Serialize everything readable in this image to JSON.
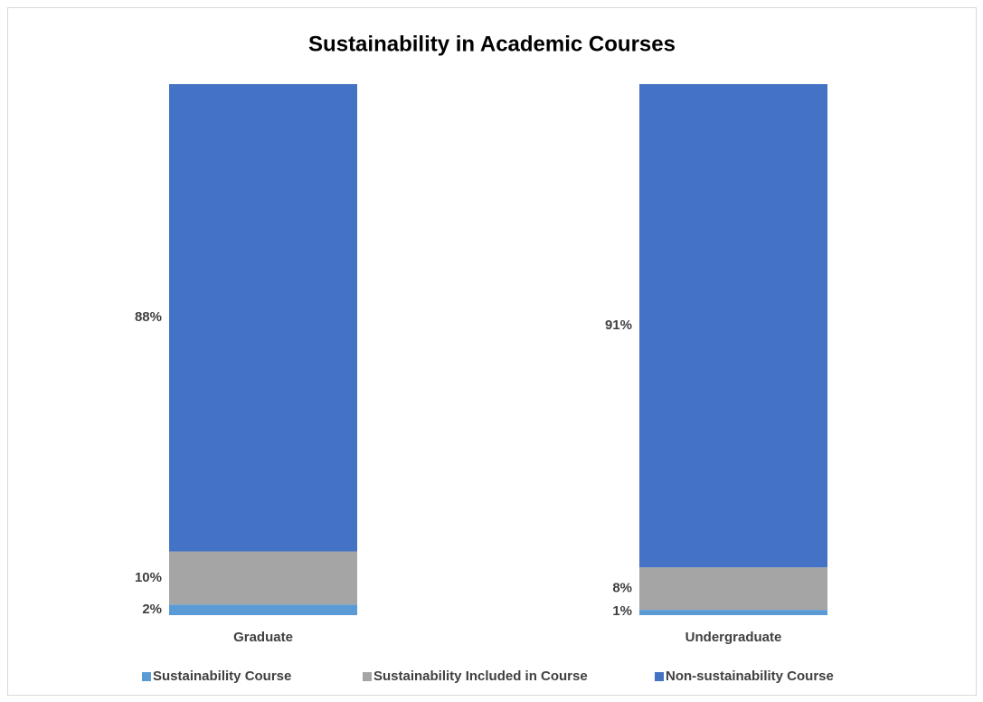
{
  "chart_data": {
    "type": "stacked_bar",
    "title": "Sustainability in Academic Courses",
    "categories": [
      "Graduate",
      "Undergraduate"
    ],
    "series": [
      {
        "name": "Sustainability Course",
        "color": "#5b9bd5",
        "values": [
          2,
          1
        ],
        "value_labels": [
          "2%",
          "1%"
        ]
      },
      {
        "name": "Sustainability Included in Course",
        "color": "#a5a5a5",
        "values": [
          10,
          8
        ],
        "value_labels": [
          "10%",
          "8%"
        ]
      },
      {
        "name": "Non-sustainability Course",
        "color": "#4472c4",
        "values": [
          88,
          91
        ],
        "value_labels": [
          "88%",
          "91%"
        ]
      }
    ],
    "ylim": [
      0,
      100
    ],
    "legend": "bottom"
  }
}
